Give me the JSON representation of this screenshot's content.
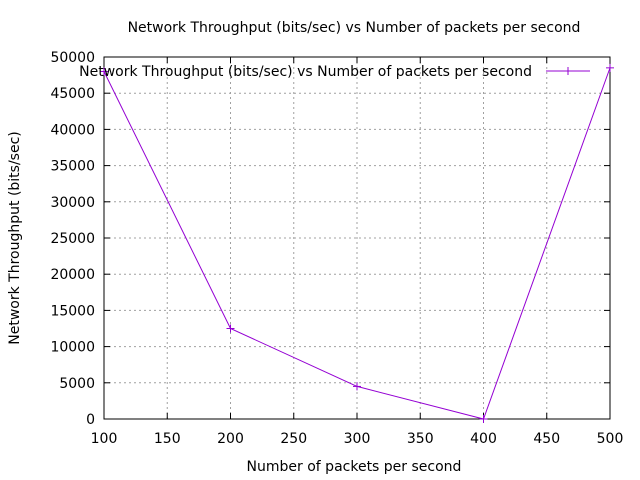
{
  "chart_data": {
    "type": "line",
    "title": "Network Throughput (bits/sec) vs Number of packets per second",
    "xlabel": "Number of packets per second",
    "ylabel": "Network Throughput (bits/sec)",
    "xlim": [
      100,
      500
    ],
    "ylim": [
      0,
      50000
    ],
    "x_ticks": [
      100,
      150,
      200,
      250,
      300,
      350,
      400,
      450,
      500
    ],
    "y_ticks": [
      0,
      5000,
      10000,
      15000,
      20000,
      25000,
      30000,
      35000,
      40000,
      45000,
      50000
    ],
    "grid": true,
    "legend_position": "top-right",
    "series": [
      {
        "name": "Network Throughput (bits/sec) vs Number of packets per second",
        "color": "#9400d3",
        "marker": "plus",
        "x": [
          100,
          200,
          300,
          400,
          500
        ],
        "y": [
          48000,
          12500,
          4500,
          0,
          48500
        ]
      }
    ]
  }
}
